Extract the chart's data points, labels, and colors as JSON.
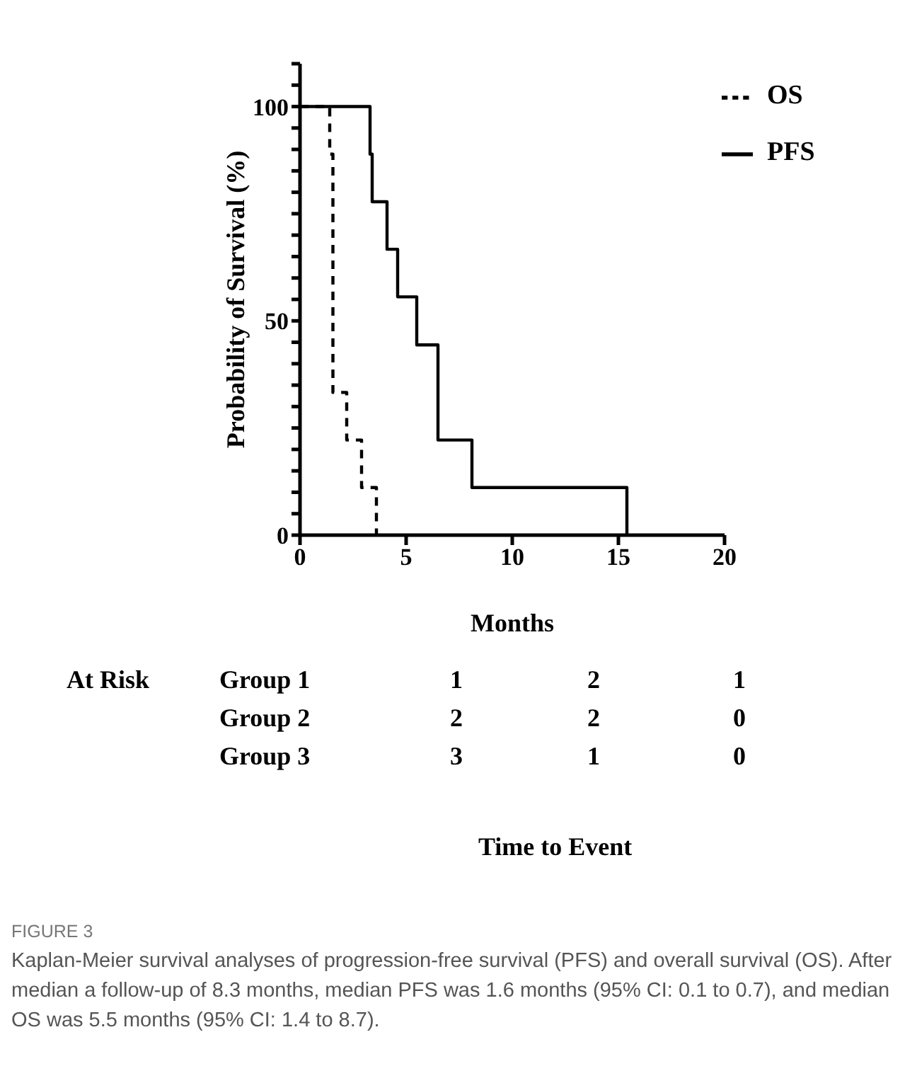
{
  "chart_data": {
    "type": "step",
    "xlabel": "Months",
    "ylabel": "Probability of Survival (%)",
    "xlim": [
      0,
      20
    ],
    "xticks": [
      0,
      5,
      10,
      15,
      20
    ],
    "ylim": [
      0,
      110
    ],
    "yticks": [
      0,
      {
        "value": 5,
        "label": null
      },
      {
        "value": 10,
        "label": null
      },
      {
        "value": 15,
        "label": null
      },
      {
        "value": 20,
        "label": null
      },
      {
        "value": 25,
        "label": null
      },
      {
        "value": 30,
        "label": null
      },
      {
        "value": 35,
        "label": null
      },
      {
        "value": 40,
        "label": null
      },
      {
        "value": 45,
        "label": null
      },
      50,
      {
        "value": 55,
        "label": null
      },
      {
        "value": 60,
        "label": null
      },
      {
        "value": 65,
        "label": null
      },
      {
        "value": 70,
        "label": null
      },
      {
        "value": 75,
        "label": null
      },
      {
        "value": 80,
        "label": null
      },
      {
        "value": 85,
        "label": null
      },
      {
        "value": 90,
        "label": null
      },
      {
        "value": 95,
        "label": null
      },
      100,
      {
        "value": 105,
        "label": null
      },
      {
        "value": 110,
        "label": null
      }
    ],
    "series": [
      {
        "name": "PFS",
        "color": "#000000",
        "line_style": "solid",
        "x": [
          0,
          3.3,
          3.4,
          4.1,
          4.6,
          5.5,
          6.5,
          8.1,
          15.4
        ],
        "values": [
          100,
          88.9,
          77.8,
          66.7,
          55.6,
          44.4,
          22.2,
          11.1,
          0
        ]
      },
      {
        "name": "OS",
        "color": "#000000",
        "line_style": "dashed",
        "x": [
          0,
          1.4,
          1.55,
          2.2,
          2.9,
          3.6
        ],
        "values": [
          100,
          88.9,
          33.3,
          22.2,
          11.1,
          0
        ]
      }
    ],
    "legend": "top right",
    "grid": false,
    "marker": "none",
    "annotations": [
      "At Risk",
      "Group 1",
      "1",
      "2",
      "1",
      "Group 2",
      "2",
      "2",
      "0",
      "Group 3",
      "3",
      "1",
      "0",
      "Time to Event",
      "FIGURE 3",
      "Kaplan-Meier survival analyses of progression-free survival (PFS) and overall survival (OS). After median a follow-up of 8.3 months, median PFS was 1.6 months (95% CI: 0.1 to 0.7), and median OS was 5.5 months (95% CI: 1.4 to 8.7)."
    ]
  }
}
